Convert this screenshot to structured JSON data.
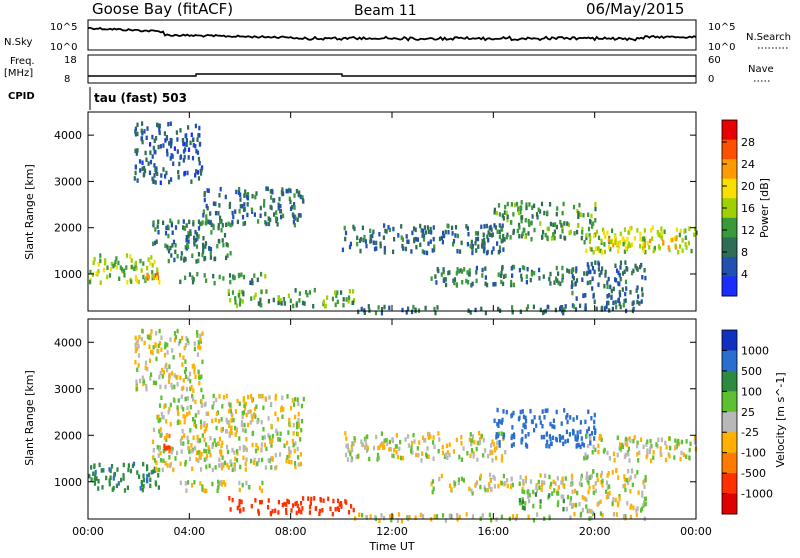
{
  "header": {
    "station": "Goose Bay (fitACF)",
    "beam": "Beam 11",
    "date": "06/May/2015"
  },
  "status_panels": {
    "nsky": {
      "label": "N.Sky",
      "tick_top": "10^5",
      "tick_bottom": "10^0"
    },
    "nsearch": {
      "label": "N.Search",
      "tick_top": "10^5",
      "tick_bottom": "10^0"
    },
    "freq": {
      "label_line1": "Freq.",
      "label_line2": "[MHz]",
      "tick_top": "18",
      "tick_bottom": "8"
    },
    "nave": {
      "label": "Nave",
      "tick_top": "60",
      "tick_bottom": "0"
    },
    "cpid": {
      "label": "CPID",
      "program": "tau (fast) 503"
    }
  },
  "colors": {
    "power_scale": [
      "#1a2dff",
      "#2050b0",
      "#2e6e55",
      "#3a9a3a",
      "#a0d000",
      "#f8e000",
      "#ff9a00",
      "#ff5000",
      "#e80000"
    ],
    "velocity_scale": [
      "#1030c0",
      "#2a6fd0",
      "#2e8a40",
      "#5cc030",
      "#b8b8b8",
      "#ffb000",
      "#ff7a00",
      "#ff3000",
      "#e00000"
    ],
    "ground_scatter": "#b8b8b8"
  },
  "chart_data": [
    {
      "type": "heatmap",
      "name": "power",
      "ylabel": "Slant Range [km]",
      "xlabel": "",
      "x_ticks": [
        "00:00",
        "04:00",
        "08:00",
        "12:00",
        "16:00",
        "20:00",
        "00:00"
      ],
      "y_ticks": [
        1000,
        2000,
        3000,
        4000
      ],
      "ylim": [
        200,
        4500
      ],
      "xlim_hours": [
        0,
        24
      ],
      "colorbar": {
        "label": "Power [dB]",
        "ticks": [
          4,
          8,
          12,
          16,
          20,
          24,
          28
        ],
        "range": [
          0,
          30
        ]
      },
      "regions": [
        {
          "t0": 0.0,
          "t1": 2.8,
          "r0": 850,
          "r1": 1450,
          "value": 14
        },
        {
          "t0": 2.3,
          "t1": 2.8,
          "r0": 950,
          "r1": 1100,
          "value": 22
        },
        {
          "t0": 2.5,
          "t1": 5.6,
          "r0": 1300,
          "r1": 2200,
          "value": 9
        },
        {
          "t0": 4.5,
          "t1": 8.5,
          "r0": 2100,
          "r1": 2900,
          "value": 8
        },
        {
          "t0": 1.8,
          "t1": 4.5,
          "r0": 3000,
          "r1": 4300,
          "value": 6
        },
        {
          "t0": 3.3,
          "t1": 7.0,
          "r0": 850,
          "r1": 1050,
          "value": 10
        },
        {
          "t0": 5.5,
          "t1": 10.5,
          "r0": 350,
          "r1": 700,
          "value": 12
        },
        {
          "t0": 10.5,
          "t1": 19.0,
          "r0": 200,
          "r1": 350,
          "value": 8
        },
        {
          "t0": 10.0,
          "t1": 16.5,
          "r0": 1500,
          "r1": 2100,
          "value": 7
        },
        {
          "t0": 13.5,
          "t1": 19.0,
          "r0": 800,
          "r1": 1200,
          "value": 9
        },
        {
          "t0": 16.0,
          "t1": 20.0,
          "r0": 1800,
          "r1": 2600,
          "value": 11
        },
        {
          "t0": 19.5,
          "t1": 24.0,
          "r0": 1500,
          "r1": 2050,
          "value": 15
        },
        {
          "t0": 20.5,
          "t1": 23.2,
          "r0": 1600,
          "r1": 1850,
          "value": 19
        },
        {
          "t0": 19.0,
          "t1": 22.0,
          "r0": 250,
          "r1": 1300,
          "value": 7
        }
      ]
    },
    {
      "type": "heatmap",
      "name": "velocity",
      "ylabel": "Slant Range [km]",
      "xlabel": "Time UT",
      "x_ticks": [
        "00:00",
        "04:00",
        "08:00",
        "12:00",
        "16:00",
        "20:00",
        "00:00"
      ],
      "y_ticks": [
        1000,
        2000,
        3000,
        4000
      ],
      "ylim": [
        200,
        4500
      ],
      "xlim_hours": [
        0,
        24
      ],
      "colorbar": {
        "label": "Velocity [m s^-1]",
        "ticks": [
          1000,
          500,
          100,
          25,
          -25,
          -100,
          -500,
          -1000
        ],
        "range": [
          -1200,
          1200
        ]
      },
      "regions": [
        {
          "t0": 0.0,
          "t1": 2.8,
          "r0": 850,
          "r1": 1450,
          "value": 250
        },
        {
          "t0": 2.5,
          "t1": 8.5,
          "r0": 1300,
          "r1": 2900,
          "value": 0
        },
        {
          "t0": 2.8,
          "t1": 3.2,
          "r0": 1700,
          "r1": 2100,
          "value": -300
        },
        {
          "t0": 1.8,
          "t1": 4.5,
          "r0": 3000,
          "r1": 4300,
          "value": -10
        },
        {
          "t0": 3.3,
          "t1": 7.0,
          "r0": 850,
          "r1": 1050,
          "value": 5
        },
        {
          "t0": 5.5,
          "t1": 10.5,
          "r0": 350,
          "r1": 700,
          "value": -400
        },
        {
          "t0": 10.5,
          "t1": 19.0,
          "r0": 200,
          "r1": 350,
          "value": 10
        },
        {
          "t0": 10.0,
          "t1": 16.5,
          "r0": 1500,
          "r1": 2100,
          "value": 0
        },
        {
          "t0": 13.5,
          "t1": 19.0,
          "r0": 800,
          "r1": 1200,
          "value": 5
        },
        {
          "t0": 16.0,
          "t1": 20.0,
          "r0": 1800,
          "r1": 2600,
          "value": 400
        },
        {
          "t0": 17.0,
          "t1": 19.0,
          "r0": 450,
          "r1": 800,
          "value": 80
        },
        {
          "t0": 19.5,
          "t1": 24.0,
          "r0": 1500,
          "r1": 2050,
          "value": 0
        },
        {
          "t0": 19.0,
          "t1": 22.0,
          "r0": 250,
          "r1": 1300,
          "value": 0
        }
      ]
    }
  ]
}
